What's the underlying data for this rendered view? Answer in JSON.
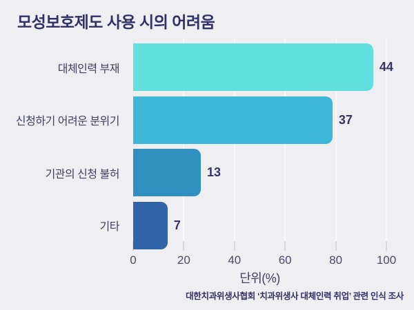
{
  "page": {
    "background_color": "#EFEEF1"
  },
  "chart_data": {
    "type": "bar",
    "orientation": "horizontal",
    "title": "모성보호제도 사용 시의 어려움",
    "categories": [
      "대체인력 부재",
      "신청하기 어려운 분위기",
      "기관의 신청 불허",
      "기타"
    ],
    "values": [
      44,
      37,
      13,
      7
    ],
    "value_unit": "%",
    "xlabel": "단위(%)",
    "x_ticks": [
      0,
      20,
      40,
      60,
      80,
      100
    ],
    "xlim": [
      0,
      100
    ],
    "grid": "vertical",
    "legend": "none",
    "source_note": "대한치과위생사협회 ‘치과위생사 대체인력 취업’ 관련 인식 조사",
    "layout": {
      "bar_display_percent": [
        94.8,
        78.7,
        26.7,
        13.6
      ],
      "bar_colors": [
        "#62E0E0",
        "#3EB6D8",
        "#3090BF",
        "#3063A8"
      ],
      "title_color": "#2F3168",
      "label_color": "#3E3E66",
      "value_color": "#34346B",
      "tick_color": "#4A4A70",
      "grid_color": "#F8F8FA",
      "background_color": "#EFEEF1"
    }
  }
}
